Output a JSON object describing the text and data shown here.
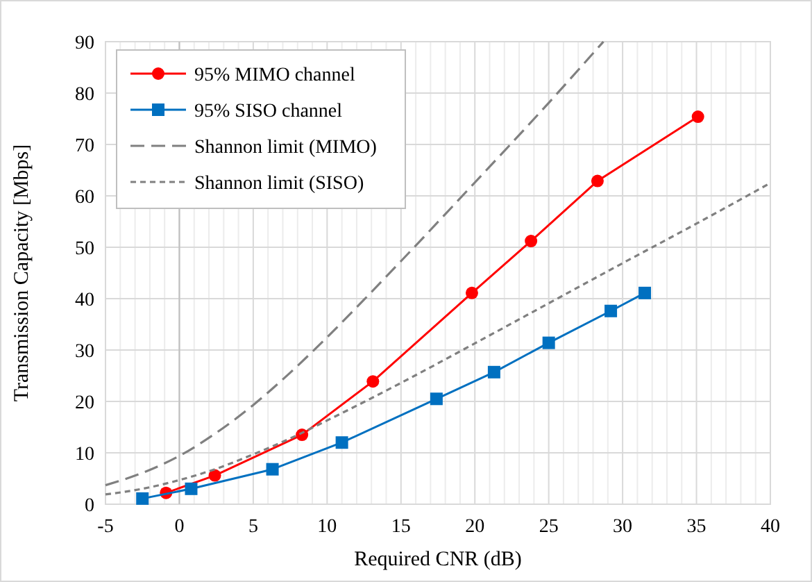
{
  "chart_data": {
    "type": "line",
    "xlabel": "Required CNR (dB)",
    "ylabel": "Transmission Capacity [Mbps]",
    "xlim": [
      -5,
      40
    ],
    "ylim": [
      0,
      90
    ],
    "xticks": [
      -5,
      {
        "value": -4,
        "label": null
      },
      {
        "value": -3,
        "label": null
      },
      {
        "value": -2,
        "label": null
      },
      {
        "value": -1,
        "label": null
      },
      0,
      {
        "value": 1,
        "label": null
      },
      {
        "value": 2,
        "label": null
      },
      {
        "value": 3,
        "label": null
      },
      {
        "value": 4,
        "label": null
      },
      5,
      {
        "value": 6,
        "label": null
      },
      {
        "value": 7,
        "label": null
      },
      {
        "value": 8,
        "label": null
      },
      {
        "value": 9,
        "label": null
      },
      10,
      {
        "value": 11,
        "label": null
      },
      {
        "value": 12,
        "label": null
      },
      {
        "value": 13,
        "label": null
      },
      {
        "value": 14,
        "label": null
      },
      15,
      {
        "value": 16,
        "label": null
      },
      {
        "value": 17,
        "label": null
      },
      {
        "value": 18,
        "label": null
      },
      {
        "value": 19,
        "label": null
      },
      20,
      {
        "value": 21,
        "label": null
      },
      {
        "value": 22,
        "label": null
      },
      {
        "value": 23,
        "label": null
      },
      {
        "value": 24,
        "label": null
      },
      25,
      {
        "value": 26,
        "label": null
      },
      {
        "value": 27,
        "label": null
      },
      {
        "value": 28,
        "label": null
      },
      {
        "value": 29,
        "label": null
      },
      30,
      {
        "value": 31,
        "label": null
      },
      {
        "value": 32,
        "label": null
      },
      {
        "value": 33,
        "label": null
      },
      {
        "value": 34,
        "label": null
      },
      35,
      {
        "value": 36,
        "label": null
      },
      {
        "value": 37,
        "label": null
      },
      {
        "value": 38,
        "label": null
      },
      {
        "value": 39,
        "label": null
      },
      40
    ],
    "yticks": [
      0,
      10,
      20,
      30,
      40,
      50,
      60,
      70,
      80,
      90
    ],
    "grid": true,
    "legend": "top left",
    "series": [
      {
        "name": "95% MIMO channel",
        "color": "#ff0000",
        "marker": "circle",
        "line_style": "solid",
        "x": [
          -0.9,
          2.4,
          8.3,
          13.1,
          19.8,
          23.8,
          28.3,
          35.1
        ],
        "values": [
          2.2,
          5.6,
          13.5,
          23.9,
          41.1,
          51.2,
          62.9,
          75.4
        ]
      },
      {
        "name": "95% SISO channel",
        "color": "#0070c0",
        "marker": "square",
        "line_style": "solid",
        "x": [
          -2.5,
          0.8,
          6.3,
          11.0,
          17.4,
          21.3,
          25.0,
          29.2,
          31.5
        ],
        "values": [
          1.1,
          3.0,
          6.8,
          12.0,
          20.5,
          25.7,
          31.4,
          37.6,
          41.1
        ]
      },
      {
        "name": "Shannon limit (MIMO)",
        "color": "#808080",
        "marker": "none",
        "line_style": "dashed",
        "x": [
          -5,
          -2.5,
          0,
          2.5,
          5,
          7.5,
          10,
          12.5,
          15,
          20,
          25,
          28.7
        ],
        "values": [
          3.7,
          6.1,
          9.4,
          13.9,
          19.3,
          25.6,
          32.5,
          39.8,
          47.3,
          62.6,
          78.1,
          90
        ]
      },
      {
        "name": "Shannon limit (SISO)",
        "color": "#808080",
        "marker": "none",
        "line_style": "dotted",
        "x": [
          -5,
          -2.5,
          0,
          2.5,
          5,
          7.5,
          10,
          12.5,
          15,
          20,
          25,
          30,
          35,
          40
        ],
        "values": [
          1.9,
          3.0,
          4.7,
          6.9,
          9.7,
          12.8,
          16.3,
          19.9,
          23.6,
          31.3,
          39.1,
          46.9,
          54.6,
          62.5
        ]
      }
    ]
  }
}
